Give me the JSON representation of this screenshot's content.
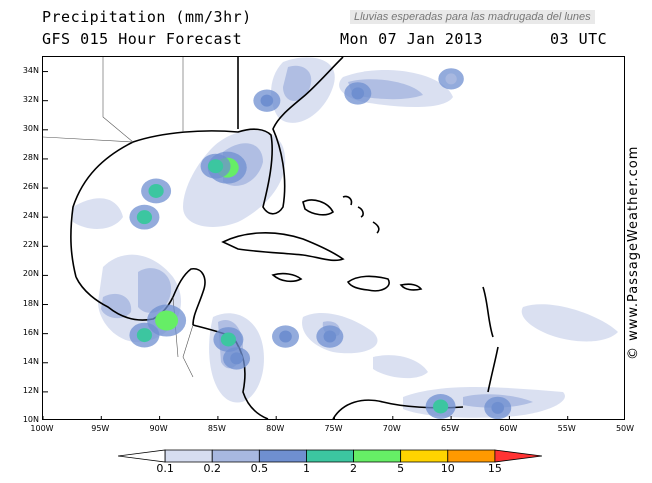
{
  "header": {
    "title": "Precipitation (mm/3hr)",
    "forecast": "GFS 015 Hour Forecast",
    "date": "Mon 07 Jan 2013",
    "time": "03 UTC",
    "subtitle": "Lluvias esperadas para las madrugada del lunes"
  },
  "credit": "© www.PassageWeather.com",
  "axes": {
    "lat_labels": [
      "34N",
      "32N",
      "30N",
      "28N",
      "26N",
      "24N",
      "22N",
      "20N",
      "18N",
      "16N",
      "14N",
      "12N",
      "10N"
    ],
    "lon_labels": [
      "100W",
      "95W",
      "90W",
      "85W",
      "80W",
      "75W",
      "70W",
      "65W",
      "60W",
      "55W",
      "50W"
    ]
  },
  "legend": {
    "labels": [
      "0.1",
      "0.2",
      "0.5",
      "1",
      "2",
      "5",
      "10",
      "15"
    ],
    "colors": [
      "#ffffff",
      "#d6ddf0",
      "#a8b8e0",
      "#6f8fd0",
      "#3cc6a0",
      "#66ee66",
      "#ffd400",
      "#ff9900",
      "#ff3333"
    ]
  },
  "precip_areas": [
    {
      "lon": -84.2,
      "lat": 27.4,
      "level": 5
    },
    {
      "lon": -85.2,
      "lat": 27.5,
      "level": 2
    },
    {
      "lon": -90.3,
      "lat": 25.8,
      "level": 2
    },
    {
      "lon": -91.3,
      "lat": 24.0,
      "level": 2
    },
    {
      "lon": -89.4,
      "lat": 16.9,
      "level": 5
    },
    {
      "lon": -91.3,
      "lat": 15.9,
      "level": 2
    },
    {
      "lon": -84.1,
      "lat": 15.6,
      "level": 2
    },
    {
      "lon": -83.4,
      "lat": 14.3,
      "level": 1
    },
    {
      "lon": -75.4,
      "lat": 15.8,
      "level": 1
    },
    {
      "lon": -79.2,
      "lat": 15.8,
      "level": 1
    },
    {
      "lon": -65.9,
      "lat": 11.0,
      "level": 2
    },
    {
      "lon": -61.0,
      "lat": 10.9,
      "level": 1
    },
    {
      "lon": -80.8,
      "lat": 32.0,
      "level": 1
    },
    {
      "lon": -73.0,
      "lat": 32.5,
      "level": 1
    },
    {
      "lon": -65.0,
      "lat": 33.5,
      "level": 0.5
    }
  ]
}
